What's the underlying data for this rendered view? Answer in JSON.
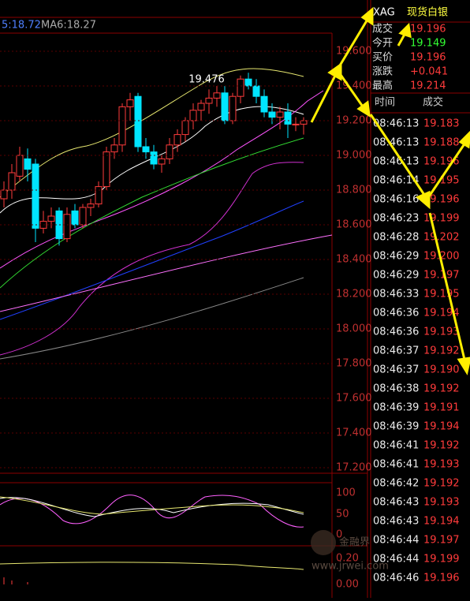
{
  "kline": {
    "legend": [
      "5:18.72",
      "MA6:18.27"
    ],
    "high_label": "19.476",
    "ylim": [
      17.2,
      19.6
    ],
    "yticks": [
      {
        "value": 19.6,
        "label": "19.600"
      },
      {
        "value": 19.4,
        "label": "19.400"
      },
      {
        "value": 19.2,
        "label": "19.200"
      },
      {
        "value": 19.0,
        "label": "19.000"
      },
      {
        "value": 18.8,
        "label": "18.800"
      },
      {
        "value": 18.6,
        "label": "18.600"
      },
      {
        "value": 18.4,
        "label": "18.400"
      },
      {
        "value": 18.2,
        "label": "18.200"
      },
      {
        "value": 18.0,
        "label": "18.000"
      },
      {
        "value": 17.8,
        "label": "17.800"
      },
      {
        "value": 17.6,
        "label": "17.600"
      },
      {
        "value": 17.4,
        "label": "17.400"
      },
      {
        "value": 17.2,
        "label": "17.200"
      }
    ],
    "candles": [
      [
        18.75,
        18.85,
        18.7,
        18.8
      ],
      [
        18.8,
        18.95,
        18.75,
        18.9
      ],
      [
        18.88,
        19.05,
        18.85,
        19.0
      ],
      [
        18.98,
        19.04,
        18.85,
        18.92
      ],
      [
        18.95,
        18.98,
        18.5,
        18.58
      ],
      [
        18.58,
        18.68,
        18.55,
        18.62
      ],
      [
        18.62,
        18.7,
        18.58,
        18.65
      ],
      [
        18.68,
        18.7,
        18.48,
        18.52
      ],
      [
        18.52,
        18.7,
        18.5,
        18.66
      ],
      [
        18.68,
        18.72,
        18.58,
        18.6
      ],
      [
        18.6,
        18.72,
        18.58,
        18.7
      ],
      [
        18.7,
        18.75,
        18.65,
        18.72
      ],
      [
        18.72,
        18.85,
        18.7,
        18.82
      ],
      [
        18.82,
        19.05,
        18.8,
        19.02
      ],
      [
        19.02,
        19.1,
        18.98,
        19.06
      ],
      [
        19.06,
        19.3,
        19.02,
        19.28
      ],
      [
        19.28,
        19.36,
        19.2,
        19.32
      ],
      [
        19.34,
        19.36,
        19.02,
        19.05
      ],
      [
        19.05,
        19.1,
        18.98,
        19.02
      ],
      [
        19.02,
        19.06,
        18.92,
        18.95
      ],
      [
        18.95,
        19.0,
        18.9,
        18.98
      ],
      [
        18.98,
        19.1,
        18.95,
        19.06
      ],
      [
        19.06,
        19.15,
        19.02,
        19.12
      ],
      [
        19.12,
        19.22,
        19.08,
        19.2
      ],
      [
        19.2,
        19.3,
        19.15,
        19.26
      ],
      [
        19.26,
        19.32,
        19.2,
        19.3
      ],
      [
        19.3,
        19.38,
        19.24,
        19.33
      ],
      [
        19.33,
        19.4,
        19.28,
        19.36
      ],
      [
        19.36,
        19.4,
        19.18,
        19.2
      ],
      [
        19.2,
        19.36,
        19.18,
        19.34
      ],
      [
        19.34,
        19.46,
        19.3,
        19.44
      ],
      [
        19.44,
        19.476,
        19.38,
        19.4
      ],
      [
        19.4,
        19.44,
        19.3,
        19.34
      ],
      [
        19.34,
        19.38,
        19.22,
        19.25
      ],
      [
        19.25,
        19.3,
        19.18,
        19.22
      ],
      [
        19.22,
        19.28,
        19.15,
        19.25
      ],
      [
        19.25,
        19.3,
        19.1,
        19.18
      ],
      [
        19.18,
        19.22,
        19.14,
        19.18
      ],
      [
        19.18,
        19.22,
        19.12,
        19.2
      ]
    ],
    "kdj_ticks": [
      "100",
      "50",
      "0"
    ],
    "macd_ticks": [
      "0.20",
      "0.00"
    ]
  },
  "quote": {
    "symbol": "XAG",
    "name": "现货白银",
    "rows": [
      [
        "成交",
        "19.196"
      ],
      [
        "今开",
        "19.149"
      ],
      [
        "买价",
        "19.196"
      ],
      [
        "涨跌",
        "+0.041"
      ],
      [
        "最高",
        "19.214"
      ]
    ]
  },
  "ticks": {
    "header": [
      "时间",
      "成交"
    ],
    "rows": [
      [
        "08:46:13",
        "19.183"
      ],
      [
        "08:46:13",
        "19.188"
      ],
      [
        "08:46:13",
        "19.196"
      ],
      [
        "08:46:14",
        "19.195"
      ],
      [
        "08:46:16",
        "19.196"
      ],
      [
        "08:46:23",
        "19.199"
      ],
      [
        "08:46:28",
        "19.202"
      ],
      [
        "08:46:29",
        "19.200"
      ],
      [
        "08:46:29",
        "19.197"
      ],
      [
        "08:46:33",
        "19.195"
      ],
      [
        "08:46:36",
        "19.194"
      ],
      [
        "08:46:36",
        "19.193"
      ],
      [
        "08:46:37",
        "19.192"
      ],
      [
        "08:46:37",
        "19.190"
      ],
      [
        "08:46:38",
        "19.192"
      ],
      [
        "08:46:39",
        "19.191"
      ],
      [
        "08:46:39",
        "19.194"
      ],
      [
        "08:46:41",
        "19.192"
      ],
      [
        "08:46:41",
        "19.193"
      ],
      [
        "08:46:42",
        "19.192"
      ],
      [
        "08:46:43",
        "19.193"
      ],
      [
        "08:46:43",
        "19.194"
      ],
      [
        "08:46:44",
        "19.197"
      ],
      [
        "08:46:44",
        "19.199"
      ],
      [
        "08:46:46",
        "19.196"
      ]
    ]
  },
  "watermark": {
    "brand": "金融界",
    "url": "www.jrwei.com"
  }
}
